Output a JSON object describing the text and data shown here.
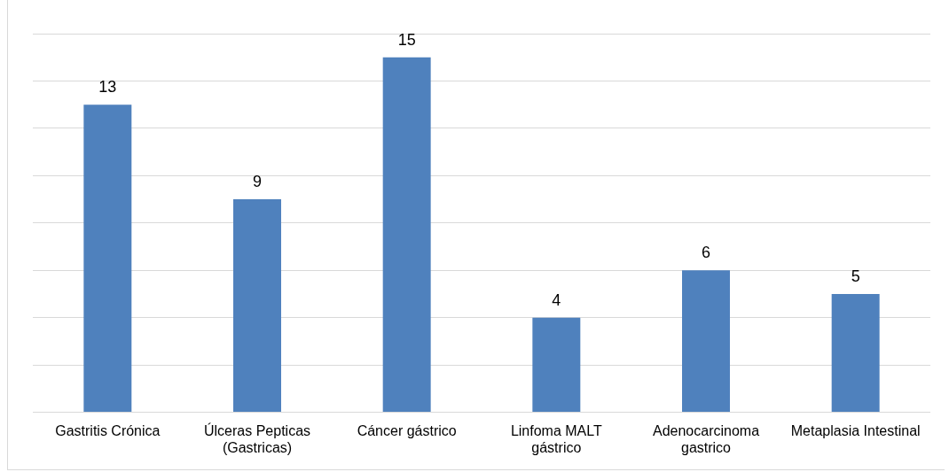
{
  "chart_data": {
    "type": "bar",
    "categories": [
      "Gastritis Crónica",
      "Úlceras Pepticas (Gastricas)",
      "Cáncer gástrico",
      "Linfoma MALT gástrico",
      "Adenocarcinoma gastrico",
      "Metaplasia Intestinal"
    ],
    "values": [
      13,
      9,
      15,
      4,
      6,
      5
    ],
    "color": "#4f81bd",
    "ylim": [
      0,
      16
    ],
    "yticks": [
      {
        "value": 0,
        "label": null
      },
      {
        "value": 2,
        "label": null
      },
      {
        "value": 4,
        "label": null
      },
      {
        "value": 6,
        "label": null
      },
      {
        "value": 8,
        "label": null
      },
      {
        "value": 10,
        "label": null
      },
      {
        "value": 12,
        "label": null
      },
      {
        "value": 14,
        "label": null
      },
      {
        "value": 16,
        "label": null
      }
    ],
    "grid": "y",
    "tick_labels": "x",
    "data_labels": true,
    "legend": false
  }
}
